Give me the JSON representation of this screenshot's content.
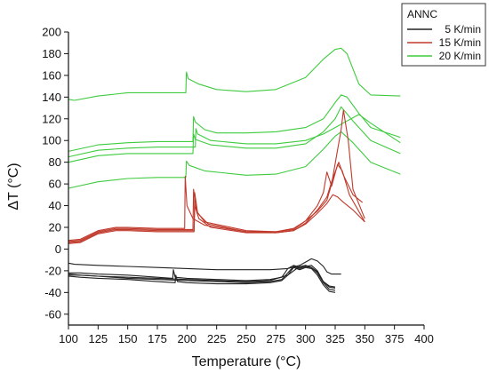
{
  "chart_data": {
    "type": "line",
    "xlabel": "Temperature (°C)",
    "ylabel": "ΔT (°C)",
    "xlim": [
      100,
      400
    ],
    "ylim": [
      -70,
      200
    ],
    "x_ticks": [
      100,
      125,
      150,
      175,
      200,
      225,
      250,
      275,
      300,
      325,
      350,
      375,
      400
    ],
    "y_ticks": [
      -60,
      -40,
      -20,
      0,
      20,
      40,
      60,
      80,
      100,
      120,
      140,
      160,
      180,
      200
    ],
    "grid": false,
    "legend": {
      "title": "ANNC",
      "position": "top-right",
      "entries": [
        {
          "label": "5 K/min",
          "color": "#222222"
        },
        {
          "label": "15 K/min",
          "color": "#c0392b"
        },
        {
          "label": "20 K/min",
          "color": "#3ecb3e"
        }
      ]
    },
    "series": [
      {
        "group": "20 K/min",
        "color": "#3ecb3e",
        "x": [
          100,
          105,
          125,
          150,
          175,
          199,
          199.5,
          201,
          210,
          225,
          250,
          275,
          300,
          315,
          325,
          330,
          335,
          345,
          355,
          380
        ],
        "y": [
          138,
          137,
          141,
          144,
          144,
          144,
          163,
          157,
          152,
          147,
          145,
          147,
          158,
          175,
          184,
          185,
          180,
          152,
          142,
          141
        ]
      },
      {
        "group": "20 K/min",
        "color": "#3ecb3e",
        "x": [
          100,
          125,
          150,
          175,
          205,
          205.5,
          207,
          215,
          225,
          250,
          275,
          300,
          315,
          325,
          330,
          335,
          345,
          355,
          380
        ],
        "y": [
          90,
          96,
          98,
          99,
          99,
          122,
          117,
          110,
          107,
          107,
          108,
          112,
          120,
          135,
          142,
          140,
          125,
          112,
          103
        ]
      },
      {
        "group": "20 K/min",
        "color": "#3ecb3e",
        "x": [
          100,
          125,
          150,
          175,
          207,
          207.5,
          209,
          220,
          250,
          275,
          300,
          315,
          325,
          335,
          340,
          345,
          355,
          380
        ],
        "y": [
          85,
          91,
          93,
          94,
          94,
          111,
          106,
          100,
          97,
          97,
          100,
          106,
          112,
          118,
          121,
          124,
          116,
          98
        ]
      },
      {
        "group": "20 K/min",
        "color": "#3ecb3e",
        "x": [
          100,
          125,
          150,
          175,
          205,
          205.5,
          207,
          220,
          250,
          275,
          300,
          315,
          325,
          330,
          340,
          355,
          380
        ],
        "y": [
          80,
          86,
          88,
          88,
          88,
          106,
          101,
          96,
          93,
          93,
          97,
          108,
          120,
          131,
          118,
          100,
          88
        ]
      },
      {
        "group": "20 K/min",
        "color": "#3ecb3e",
        "x": [
          100,
          125,
          150,
          175,
          199,
          199.5,
          202,
          215,
          250,
          275,
          300,
          315,
          325,
          330,
          340,
          355,
          380
        ],
        "y": [
          56,
          62,
          65,
          66,
          66,
          81,
          77,
          72,
          68,
          69,
          76,
          92,
          104,
          108,
          98,
          80,
          69
        ]
      },
      {
        "group": "15 K/min",
        "color": "#c0392b",
        "x": [
          100,
          110,
          125,
          140,
          150,
          175,
          198,
          198.5,
          200,
          205,
          215,
          250,
          275,
          290,
          300,
          310,
          318,
          322,
          326,
          330,
          332,
          336,
          340,
          350
        ],
        "y": [
          8,
          9,
          17,
          20,
          20,
          19,
          19,
          67,
          40,
          28,
          22,
          16,
          16,
          19,
          26,
          35,
          45,
          60,
          85,
          110,
          128,
          100,
          55,
          28
        ]
      },
      {
        "group": "15 K/min",
        "color": "#c0392b",
        "x": [
          100,
          110,
          125,
          140,
          150,
          175,
          205,
          205.5,
          208,
          215,
          250,
          275,
          290,
          300,
          310,
          315,
          318,
          322,
          327,
          331,
          337,
          350
        ],
        "y": [
          7,
          8,
          16,
          19,
          19,
          18,
          18,
          55,
          35,
          25,
          17,
          16,
          18,
          26,
          40,
          52,
          71,
          58,
          78,
          72,
          50,
          25
        ]
      },
      {
        "group": "15 K/min",
        "color": "#c0392b",
        "x": [
          100,
          110,
          125,
          140,
          150,
          175,
          206,
          206.5,
          209,
          218,
          250,
          275,
          290,
          300,
          310,
          318,
          322,
          328,
          332,
          340,
          348
        ],
        "y": [
          6,
          7,
          15,
          18,
          18,
          17,
          17,
          52,
          33,
          23,
          16,
          15,
          17,
          24,
          36,
          48,
          62,
          80,
          68,
          50,
          43
        ]
      },
      {
        "group": "15 K/min",
        "color": "#c0392b",
        "x": [
          100,
          110,
          125,
          140,
          150,
          175,
          206,
          206.5,
          210,
          220,
          250,
          275,
          290,
          300,
          310,
          318,
          323,
          327,
          331,
          340,
          350
        ],
        "y": [
          5,
          6,
          14,
          17,
          17,
          16,
          16,
          40,
          28,
          20,
          15,
          15,
          17,
          23,
          33,
          42,
          50,
          48,
          44,
          36,
          25
        ]
      },
      {
        "group": "5 K/min",
        "color": "#222222",
        "x": [
          100,
          105,
          125,
          150,
          175,
          200,
          225,
          250,
          270,
          285,
          295,
          300,
          305,
          310,
          315,
          318,
          322,
          330
        ],
        "y": [
          -13,
          -14,
          -15,
          -16,
          -17,
          -18,
          -19,
          -19,
          -19,
          -18,
          -15,
          -12,
          -9,
          -11,
          -16,
          -21,
          -23,
          -23
        ]
      },
      {
        "group": "5 K/min",
        "color": "#222222",
        "x": [
          100,
          110,
          125,
          150,
          175,
          188,
          188.5,
          190,
          200,
          225,
          250,
          270,
          280,
          285,
          290,
          295,
          300,
          305,
          310,
          315,
          320,
          325
        ],
        "y": [
          -22,
          -22,
          -23,
          -24,
          -26,
          -27,
          -19,
          -26,
          -27,
          -28,
          -29,
          -28,
          -26,
          -18,
          -15,
          -17,
          -16,
          -15,
          -20,
          -30,
          -35,
          -36
        ]
      },
      {
        "group": "5 K/min",
        "color": "#222222",
        "x": [
          100,
          110,
          125,
          150,
          175,
          200,
          225,
          250,
          270,
          280,
          285,
          290,
          295,
          300,
          305,
          310,
          315,
          320,
          325
        ],
        "y": [
          -24,
          -24,
          -25,
          -27,
          -28,
          -29,
          -30,
          -31,
          -30,
          -28,
          -22,
          -16,
          -18,
          -16,
          -17,
          -22,
          -31,
          -37,
          -38
        ]
      },
      {
        "group": "5 K/min",
        "color": "#222222",
        "x": [
          100,
          110,
          125,
          150,
          175,
          190,
          190.5,
          192,
          200,
          225,
          250,
          270,
          280,
          285,
          290,
          295,
          300,
          305,
          310,
          315,
          320,
          325
        ],
        "y": [
          -25,
          -26,
          -27,
          -28,
          -30,
          -31,
          -24,
          -30,
          -31,
          -32,
          -32,
          -31,
          -29,
          -24,
          -17,
          -19,
          -17,
          -18,
          -24,
          -33,
          -39,
          -40
        ]
      },
      {
        "group": "5 K/min",
        "color": "#222222",
        "x": [
          100,
          110,
          125,
          150,
          175,
          200,
          225,
          250,
          270,
          285,
          295,
          300,
          305,
          310,
          315,
          320,
          325
        ],
        "y": [
          -23,
          -24,
          -25,
          -26,
          -27,
          -28,
          -29,
          -30,
          -29,
          -24,
          -16,
          -15,
          -17,
          -21,
          -30,
          -34,
          -35
        ]
      }
    ]
  }
}
